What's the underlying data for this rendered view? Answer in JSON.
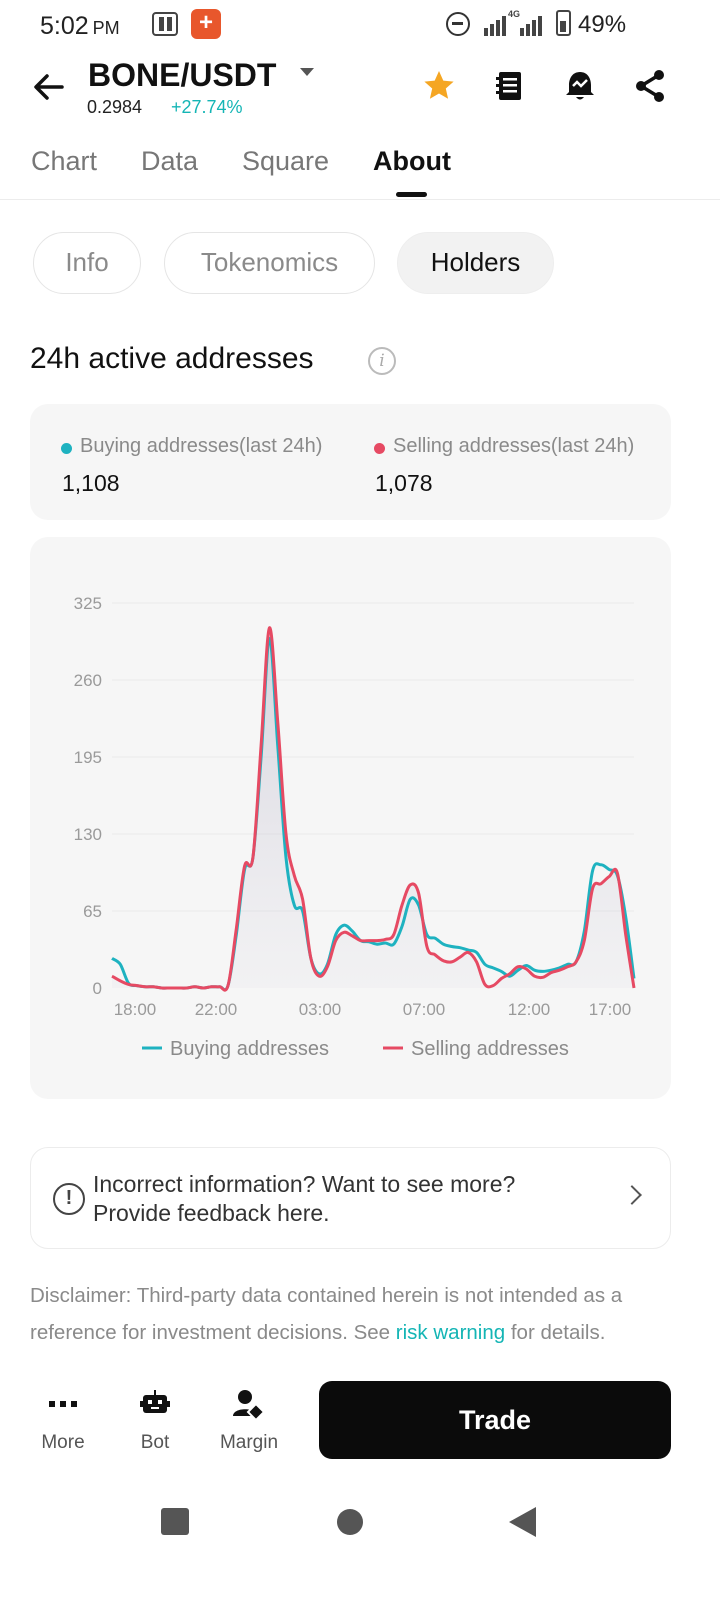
{
  "status_bar": {
    "time": "5:02",
    "ampm": "PM",
    "network": "4G",
    "battery": "49%"
  },
  "header": {
    "pair": "BONE/USDT",
    "price": "0.2984",
    "change": "+27.74%"
  },
  "tabs": [
    "Chart",
    "Data",
    "Square",
    "About"
  ],
  "active_tab": "About",
  "subtabs": [
    "Info",
    "Tokenomics",
    "Holders"
  ],
  "active_subtab": "Holders",
  "section_title": "24h active addresses",
  "stats": {
    "buying_label": "Buying addresses(last 24h)",
    "buying_value": "1,108",
    "selling_label": "Selling addresses(last 24h)",
    "selling_value": "1,078"
  },
  "colors": {
    "buying": "#1eb2c0",
    "selling": "#e64a63",
    "accent": "#14b5b5"
  },
  "chart_data": {
    "type": "line",
    "title": "",
    "xlabel": "",
    "ylabel": "",
    "ylim": [
      0,
      325
    ],
    "yticks": [
      "0",
      "65",
      "130",
      "195",
      "260",
      "325"
    ],
    "x_ticks": [
      "18:00",
      "22:00",
      "03:00",
      "07:00",
      "12:00",
      "17:00"
    ],
    "series": [
      {
        "name": "Buying addresses",
        "values": [
          25,
          20,
          4,
          2,
          1,
          1,
          0,
          0,
          0,
          0,
          1,
          0,
          1,
          1,
          2,
          45,
          100,
          110,
          195,
          295,
          205,
          110,
          70,
          65,
          25,
          12,
          20,
          45,
          53,
          48,
          40,
          39,
          37,
          38,
          37,
          52,
          75,
          70,
          45,
          42,
          37,
          35,
          34,
          32,
          30,
          20,
          17,
          14,
          10,
          15,
          19,
          15,
          14,
          15,
          17,
          20,
          22,
          48,
          99,
          104,
          100,
          95,
          60,
          8
        ]
      },
      {
        "name": "Selling addresses",
        "values": [
          10,
          6,
          3,
          2,
          1,
          1,
          0,
          0,
          0,
          0,
          1,
          0,
          1,
          1,
          2,
          50,
          103,
          110,
          205,
          304,
          225,
          130,
          95,
          75,
          25,
          10,
          18,
          40,
          47,
          44,
          40,
          40,
          40,
          41,
          45,
          70,
          87,
          80,
          35,
          28,
          23,
          22,
          26,
          30,
          22,
          3,
          2,
          8,
          12,
          18,
          16,
          10,
          9,
          13,
          15,
          18,
          22,
          40,
          84,
          88,
          94,
          97,
          45,
          0
        ]
      }
    ]
  },
  "feedback": {
    "line1": "Incorrect information? Want to see more?",
    "line2": "Provide feedback here."
  },
  "disclaimer": {
    "before": "Disclaimer: Third-party data contained herein is not intended as a reference for investment decisions. See ",
    "link": "risk warning",
    "after": " for details."
  },
  "bottom_bar": {
    "more": "More",
    "bot": "Bot",
    "margin": "Margin",
    "trade": "Trade"
  }
}
